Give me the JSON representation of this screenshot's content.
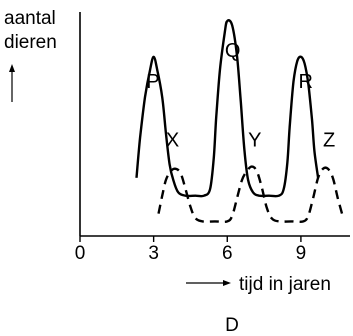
{
  "chart_data": {
    "type": "line",
    "ylabel_lines": [
      "aantal",
      "dieren"
    ],
    "xlabel": "tijd in jaren",
    "panel_label": "D",
    "x_ticks": [
      0,
      3,
      6,
      9
    ],
    "xlim": [
      0,
      11
    ],
    "ylim": [
      0,
      10
    ],
    "series": [
      {
        "style": "solid",
        "color": "#000000",
        "peak_labels": [
          {
            "text": "P",
            "x": 2.7,
            "y": 6.6
          },
          {
            "text": "Q",
            "x": 5.9,
            "y": 8.0
          },
          {
            "text": "R",
            "x": 8.9,
            "y": 6.6
          }
        ],
        "points": [
          [
            2.3,
            2.6
          ],
          [
            2.45,
            4.4
          ],
          [
            2.65,
            6.2
          ],
          [
            2.85,
            7.4
          ],
          [
            3.0,
            8.0
          ],
          [
            3.15,
            7.4
          ],
          [
            3.35,
            6.2
          ],
          [
            3.5,
            4.6
          ],
          [
            3.65,
            3.2
          ],
          [
            3.8,
            2.5
          ],
          [
            4.0,
            1.95
          ],
          [
            4.3,
            1.8
          ],
          [
            4.7,
            1.8
          ],
          [
            5.05,
            1.8
          ],
          [
            5.3,
            2.1
          ],
          [
            5.45,
            3.5
          ],
          [
            5.55,
            5.3
          ],
          [
            5.7,
            7.4
          ],
          [
            5.9,
            9.1
          ],
          [
            6.0,
            9.6
          ],
          [
            6.2,
            9.4
          ],
          [
            6.4,
            8.0
          ],
          [
            6.55,
            6.0
          ],
          [
            6.7,
            3.8
          ],
          [
            6.85,
            2.5
          ],
          [
            7.05,
            1.95
          ],
          [
            7.3,
            1.8
          ],
          [
            7.7,
            1.8
          ],
          [
            8.1,
            1.8
          ],
          [
            8.3,
            2.1
          ],
          [
            8.45,
            3.3
          ],
          [
            8.55,
            5.0
          ],
          [
            8.7,
            6.9
          ],
          [
            8.85,
            7.8
          ],
          [
            9.0,
            8.0
          ],
          [
            9.15,
            7.7
          ],
          [
            9.3,
            6.8
          ],
          [
            9.45,
            5.2
          ],
          [
            9.55,
            3.8
          ],
          [
            9.7,
            2.6
          ]
        ]
      },
      {
        "style": "dashed",
        "color": "#000000",
        "peak_labels": [
          {
            "text": "X",
            "x": 3.5,
            "y": 4.0
          },
          {
            "text": "Y",
            "x": 6.85,
            "y": 4.0
          },
          {
            "text": "Z",
            "x": 9.9,
            "y": 4.0
          }
        ],
        "points": [
          [
            3.2,
            1.0
          ],
          [
            3.35,
            1.8
          ],
          [
            3.5,
            2.5
          ],
          [
            3.7,
            2.9
          ],
          [
            3.9,
            3.0
          ],
          [
            4.1,
            2.8
          ],
          [
            4.3,
            2.1
          ],
          [
            4.5,
            1.3
          ],
          [
            4.7,
            0.8
          ],
          [
            5.0,
            0.65
          ],
          [
            5.5,
            0.65
          ],
          [
            6.0,
            0.65
          ],
          [
            6.2,
            0.9
          ],
          [
            6.4,
            1.7
          ],
          [
            6.6,
            2.5
          ],
          [
            6.8,
            2.9
          ],
          [
            7.0,
            3.1
          ],
          [
            7.2,
            2.9
          ],
          [
            7.4,
            2.2
          ],
          [
            7.6,
            1.3
          ],
          [
            7.8,
            0.8
          ],
          [
            8.1,
            0.65
          ],
          [
            8.6,
            0.65
          ],
          [
            9.1,
            0.65
          ],
          [
            9.3,
            0.9
          ],
          [
            9.5,
            1.7
          ],
          [
            9.7,
            2.6
          ],
          [
            9.9,
            3.0
          ],
          [
            10.1,
            3.0
          ],
          [
            10.3,
            2.6
          ],
          [
            10.5,
            1.7
          ],
          [
            10.7,
            0.9
          ]
        ]
      }
    ]
  }
}
